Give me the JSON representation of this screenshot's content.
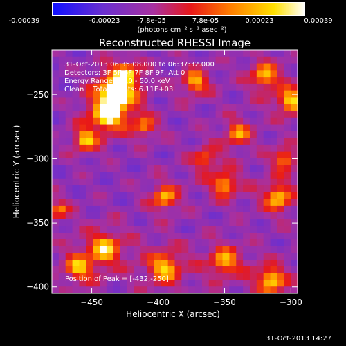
{
  "colorbar": {
    "tick_labels": [
      "-0.00039",
      "-0.00023",
      "-7.8e-05",
      "7.8e-05",
      "0.00023",
      "0.00039"
    ],
    "unit_label": "(photons cm⁻² s⁻¹ asec⁻²)",
    "colors": [
      "#1010ff",
      "#6a2fd0",
      "#a830a0",
      "#e81818",
      "#ff7a00",
      "#ffe000",
      "#ffffff"
    ]
  },
  "chart_data": {
    "type": "heatmap",
    "title": "Reconstructed RHESSI Image",
    "xlabel": "Heliocentric X (arcsec)",
    "ylabel": "Heliocentric Y (arcsec)",
    "xlim": [
      -480,
      -295
    ],
    "ylim": [
      -405,
      -215
    ],
    "x_ticks": [
      -450,
      -400,
      -350,
      -300
    ],
    "y_ticks": [
      -250,
      -300,
      -350,
      -400
    ],
    "x_tick_labels": [
      "−450",
      "−400",
      "−350",
      "−300"
    ],
    "y_tick_labels": [
      "−250",
      "−300",
      "−350",
      "−400"
    ],
    "colorbar_range": [
      -0.00039,
      0.00039
    ],
    "peak_position": [
      -432,
      -250
    ],
    "grid": false,
    "annotations": [
      "31-Oct-2013 06:35:08.000 to 06:37:32.000",
      "Detectors: 3F 5F 6F 7F 8F 9F, Att 0",
      "Energy Range: 25.0 - 50.0 keV",
      "Clean    Total counts: 6.11E+03"
    ],
    "peak_label": "Position of Peak = [-432,-250]",
    "grid_size": 36
  },
  "footer": {
    "timestamp": "31-Oct-2013 14:27"
  }
}
